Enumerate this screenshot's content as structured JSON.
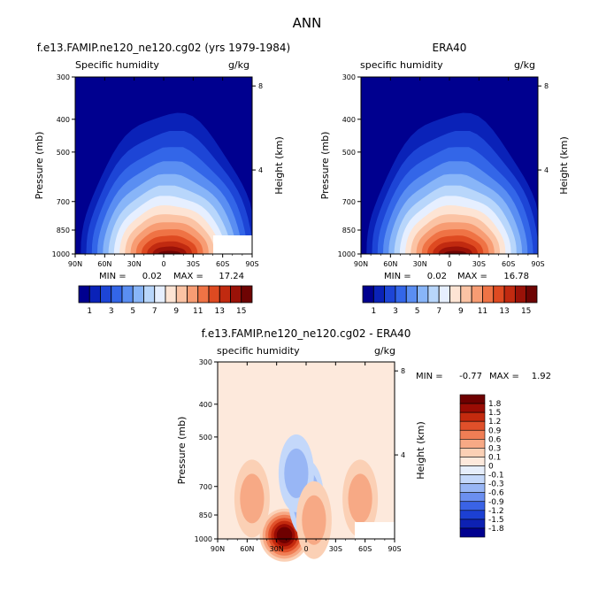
{
  "figure_title": "ANN",
  "colors": {
    "scale_abs": [
      "#00008f",
      "#0a22b8",
      "#1d45d6",
      "#3366e8",
      "#5a8ef2",
      "#88b5f8",
      "#b8d6fb",
      "#e6efff",
      "#fde4d4",
      "#fbc3a4",
      "#f79c73",
      "#ef7345",
      "#de4a21",
      "#c12a10",
      "#9a1208",
      "#6e0403"
    ],
    "scale_diff": [
      "#00008f",
      "#0d21b3",
      "#1c40d3",
      "#3a63e6",
      "#6b8ff0",
      "#98b6f5",
      "#c4d8fa",
      "#e6eefb",
      "#fde9dc",
      "#fbd0b5",
      "#f7a985",
      "#f07e55",
      "#e0502a",
      "#c42a0e",
      "#9a0c04",
      "#6e0000"
    ]
  },
  "chart_data": [
    {
      "type": "contour",
      "panel_title": "f.e13.FAMIP.ne120_ne120.cg02 (yrs 1979-1984)",
      "field_label": "Specific humidity",
      "units": "g/kg",
      "xlabel": "",
      "ylabel": "Pressure (mb)",
      "ylabel_right": "Height (km)",
      "x_ticks": [
        "90N",
        "60N",
        "30N",
        "0",
        "30S",
        "60S",
        "90S"
      ],
      "y_ticks": [
        300,
        400,
        500,
        700,
        850,
        1000
      ],
      "ylim": [
        300,
        1000
      ],
      "height_ticks": [
        8,
        4
      ],
      "min_label": "MIN = ",
      "min_value": "0.02",
      "max_label": "MAX = ",
      "max_value": "17.24",
      "colorbar_labels": [
        "1",
        "3",
        "5",
        "7",
        "9",
        "11",
        "13",
        "15"
      ],
      "peak_lat": -6,
      "peak_value": 17.24
    },
    {
      "type": "contour",
      "panel_title": "ERA40",
      "field_label": "specific humidity",
      "units": "g/kg",
      "xlabel": "",
      "ylabel": "Pressure (mb)",
      "ylabel_right": "Height (km)",
      "x_ticks": [
        "90N",
        "60N",
        "30N",
        "0",
        "30S",
        "60S",
        "90S"
      ],
      "y_ticks": [
        300,
        400,
        500,
        700,
        850,
        1000
      ],
      "ylim": [
        300,
        1000
      ],
      "height_ticks": [
        8,
        4
      ],
      "min_label": "MIN = ",
      "min_value": "0.02",
      "max_label": "MAX = ",
      "max_value": "16.78",
      "colorbar_labels": [
        "1",
        "3",
        "5",
        "7",
        "9",
        "11",
        "13",
        "15"
      ],
      "peak_lat": -6,
      "peak_value": 16.78
    },
    {
      "type": "contour",
      "panel_title": "f.e13.FAMIP.ne120_ne120.cg02 - ERA40",
      "field_label": "specific humidity",
      "units": "g/kg",
      "xlabel": "",
      "ylabel": "Pressure (mb)",
      "ylabel_right": "Height (km)",
      "x_ticks": [
        "90N",
        "60N",
        "30N",
        "0",
        "30S",
        "60S",
        "90S"
      ],
      "y_ticks": [
        300,
        400,
        500,
        700,
        850,
        1000
      ],
      "ylim": [
        300,
        1000
      ],
      "height_ticks": [
        8,
        4
      ],
      "min_label": "MIN = ",
      "min_value": "-0.77",
      "max_label": "MAX = ",
      "max_value": "1.92",
      "colorbar_labels": [
        "1.8",
        "1.5",
        "1.2",
        "0.9",
        "0.6",
        "0.3",
        "0.1",
        "0",
        "-0.1",
        "-0.3",
        "-0.6",
        "-0.9",
        "-1.2",
        "-1.5",
        "-1.8"
      ],
      "features": [
        {
          "lat": 22,
          "p": 975,
          "value": 1.9
        },
        {
          "lat": 0,
          "p": 760,
          "value": -0.75
        },
        {
          "lat": 10,
          "p": 640,
          "value": -0.4
        },
        {
          "lat": -8,
          "p": 880,
          "value": 0.5
        },
        {
          "lat": 55,
          "p": 760,
          "value": 0.25
        },
        {
          "lat": -55,
          "p": 760,
          "value": 0.25
        }
      ]
    }
  ]
}
